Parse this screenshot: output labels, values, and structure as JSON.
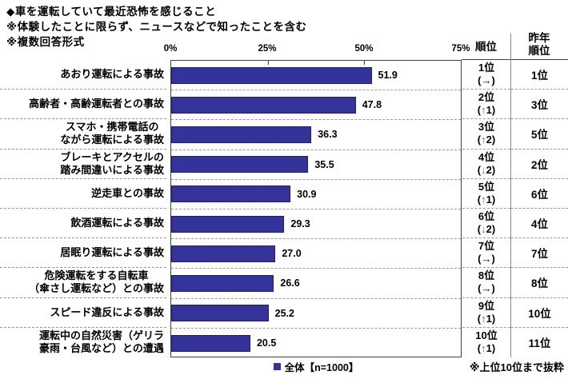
{
  "header": {
    "title": "◆車を運転していて最近恐怖を感じること",
    "note1": "※体験したことに限らず、ニュースなどで知ったことを含む",
    "note2": "※複数回答形式"
  },
  "columns": {
    "rank_header": "順位",
    "last_year_header_lines": [
      "昨年",
      "順位"
    ],
    "change_open": "(",
    "change_close": ")"
  },
  "legend": {
    "label": "全体【n=1000】",
    "swatch_color": "#333399"
  },
  "footnote": "※上位10位まで抜粋",
  "colors": {
    "bar": "#333399",
    "up_arrow": "#c0504d",
    "down_arrow": "#4f81bd",
    "same_arrow": "#000000"
  },
  "chart_data": {
    "type": "bar",
    "orientation": "horizontal",
    "title": "車を運転していて最近恐怖を感じること",
    "xlabel": "",
    "ylabel": "",
    "x_ticks": [
      "0%",
      "25%",
      "50%",
      "75%"
    ],
    "xlim": [
      0,
      75
    ],
    "grid": "row-separators-dashed",
    "legend_position": "bottom-center",
    "categories": [
      "あおり運転による事故",
      "高齢者・高齢運転者との事故",
      "スマホ・携帯電話のながら運転による事故",
      "ブレーキとアクセルの踏み間違いによる事故",
      "逆走車との事故",
      "飲酒運転による事故",
      "居眠り運転による事故",
      "危険運転をする自転車（傘さし運転など）との事故",
      "スピード違反による事故",
      "運転中の自然災害（ゲリラ豪雨・台風など）との遭遇"
    ],
    "values": [
      51.9,
      47.8,
      36.3,
      35.5,
      30.9,
      29.3,
      27.0,
      26.6,
      25.2,
      20.5
    ],
    "rows": [
      {
        "label_lines": [
          "あおり運転による事故"
        ],
        "value": 51.9,
        "value_label": "51.9",
        "rank": "1位",
        "change": {
          "arrow": "→",
          "num": "",
          "dir": "same"
        },
        "last_year": "1位"
      },
      {
        "label_lines": [
          "高齢者・高齢運転者との事故"
        ],
        "value": 47.8,
        "value_label": "47.8",
        "rank": "2位",
        "change": {
          "arrow": "↑",
          "num": "1",
          "dir": "up"
        },
        "last_year": "3位"
      },
      {
        "label_lines": [
          "スマホ・携帯電話の",
          "ながら運転による事故"
        ],
        "value": 36.3,
        "value_label": "36.3",
        "rank": "3位",
        "change": {
          "arrow": "↑",
          "num": "2",
          "dir": "up"
        },
        "last_year": "5位"
      },
      {
        "label_lines": [
          "ブレーキとアクセルの",
          "踏み間違いによる事故"
        ],
        "value": 35.5,
        "value_label": "35.5",
        "rank": "4位",
        "change": {
          "arrow": "↓",
          "num": "2",
          "dir": "down"
        },
        "last_year": "2位"
      },
      {
        "label_lines": [
          "逆走車との事故"
        ],
        "value": 30.9,
        "value_label": "30.9",
        "rank": "5位",
        "change": {
          "arrow": "↑",
          "num": "1",
          "dir": "up"
        },
        "last_year": "6位"
      },
      {
        "label_lines": [
          "飲酒運転による事故"
        ],
        "value": 29.3,
        "value_label": "29.3",
        "rank": "6位",
        "change": {
          "arrow": "↓",
          "num": "2",
          "dir": "down"
        },
        "last_year": "4位"
      },
      {
        "label_lines": [
          "居眠り運転による事故"
        ],
        "value": 27.0,
        "value_label": "27.0",
        "rank": "7位",
        "change": {
          "arrow": "→",
          "num": "",
          "dir": "same"
        },
        "last_year": "7位"
      },
      {
        "label_lines": [
          "危険運転をする自転車",
          "（傘さし運転など）との事故"
        ],
        "value": 26.6,
        "value_label": "26.6",
        "rank": "8位",
        "change": {
          "arrow": "→",
          "num": "",
          "dir": "same"
        },
        "last_year": "8位"
      },
      {
        "label_lines": [
          "スピード違反による事故"
        ],
        "value": 25.2,
        "value_label": "25.2",
        "rank": "9位",
        "change": {
          "arrow": "↑",
          "num": "1",
          "dir": "up"
        },
        "last_year": "10位"
      },
      {
        "label_lines": [
          "運転中の自然災害（ゲリラ",
          "豪雨・台風など）との遭遇"
        ],
        "value": 20.5,
        "value_label": "20.5",
        "rank": "10位",
        "change": {
          "arrow": "↑",
          "num": "1",
          "dir": "up"
        },
        "last_year": "11位"
      }
    ]
  },
  "axis": {
    "tick_labels": [
      "0%",
      "25%",
      "50%",
      "75%"
    ]
  }
}
